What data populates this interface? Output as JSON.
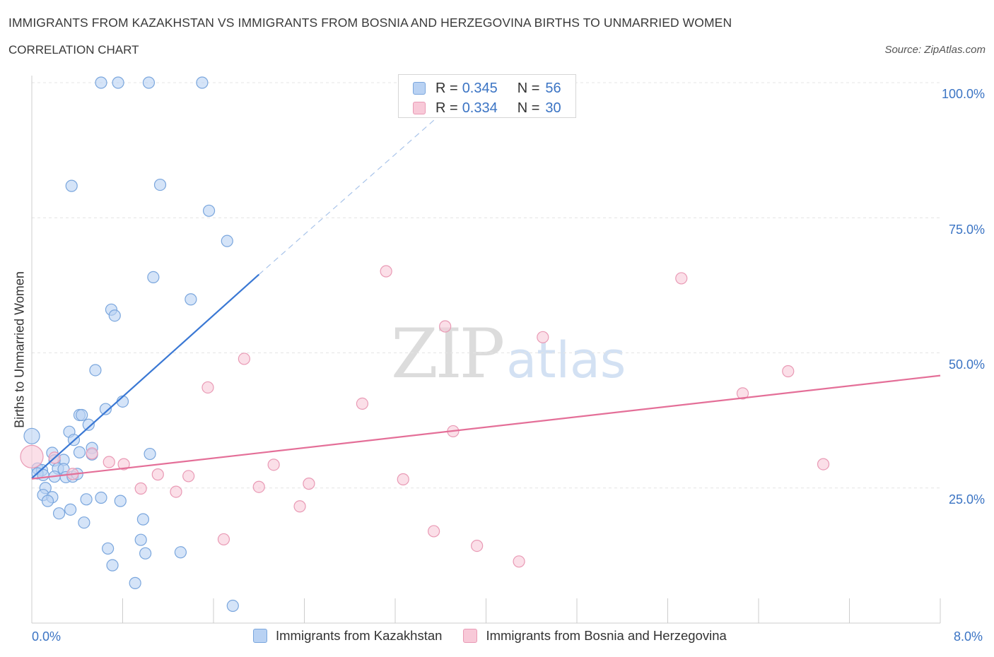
{
  "header": {
    "title": "IMMIGRANTS FROM KAZAKHSTAN VS IMMIGRANTS FROM BOSNIA AND HERZEGOVINA BIRTHS TO UNMARRIED WOMEN",
    "subtitle": "CORRELATION CHART",
    "source": "Source: ZipAtlas.com"
  },
  "watermark": {
    "zip": "ZIP",
    "atlas": "atlas"
  },
  "legend_top": {
    "rows": [
      {
        "r_label": "R =",
        "r_value": "0.345",
        "n_label": "N =",
        "n_value": "56"
      },
      {
        "r_label": "R =",
        "r_value": "0.334",
        "n_label": "N =",
        "n_value": "30"
      }
    ]
  },
  "legend_bottom": {
    "items": [
      {
        "label": "Immigrants from Kazakhstan"
      },
      {
        "label": "Immigrants from Bosnia and Herzegovina"
      }
    ]
  },
  "axes": {
    "ylabel": "Births to Unmarried Women",
    "x_ticks": [
      "0.0%",
      "8.0%"
    ],
    "y_ticks": [
      "100.0%",
      "75.0%",
      "50.0%",
      "25.0%"
    ]
  },
  "colors": {
    "series1_fill": "#b9d2f3",
    "series1_stroke": "#7aa6dd",
    "series1_line": "#3a78d4",
    "series2_fill": "#f8c9d8",
    "series2_stroke": "#e99ab5",
    "series2_line": "#e46f98",
    "grid": "#e4e4e4",
    "axis": "#cccccc",
    "tick_text": "#3b74c4"
  },
  "chart_data": {
    "type": "scatter",
    "title": "IMMIGRANTS FROM KAZAKHSTAN VS IMMIGRANTS FROM BOSNIA AND HERZEGOVINA BIRTHS TO UNMARRIED WOMEN",
    "xlabel": "",
    "ylabel": "Births to Unmarried Women",
    "xlim": [
      0,
      8.0
    ],
    "ylim": [
      0,
      100
    ],
    "grid": true,
    "legend_position": "top-center",
    "series": [
      {
        "name": "Immigrants from Kazakhstan",
        "R": 0.345,
        "N": 56,
        "points": [
          [
            0.61,
            100.0
          ],
          [
            0.76,
            100.0
          ],
          [
            1.03,
            100.0
          ],
          [
            1.5,
            100.0
          ],
          [
            0.35,
            80.9
          ],
          [
            1.13,
            81.1
          ],
          [
            1.56,
            76.3
          ],
          [
            1.72,
            70.7
          ],
          [
            1.07,
            64.0
          ],
          [
            1.4,
            59.9
          ],
          [
            0.7,
            58.0
          ],
          [
            0.73,
            56.9
          ],
          [
            0.56,
            46.8
          ],
          [
            0.8,
            41.0
          ],
          [
            0.65,
            39.6
          ],
          [
            0.42,
            38.5
          ],
          [
            0.44,
            38.5
          ],
          [
            0.5,
            36.7
          ],
          [
            0.33,
            35.4
          ],
          [
            0.0,
            34.6
          ],
          [
            0.37,
            33.9
          ],
          [
            0.53,
            32.4
          ],
          [
            0.42,
            31.6
          ],
          [
            0.18,
            31.5
          ],
          [
            0.53,
            31.2
          ],
          [
            1.04,
            31.3
          ],
          [
            0.28,
            30.2
          ],
          [
            0.2,
            30.1
          ],
          [
            0.05,
            28.6
          ],
          [
            0.09,
            28.3
          ],
          [
            0.23,
            28.6
          ],
          [
            0.28,
            28.5
          ],
          [
            0.05,
            27.7
          ],
          [
            0.1,
            27.4
          ],
          [
            0.2,
            27.1
          ],
          [
            0.3,
            27.0
          ],
          [
            0.36,
            27.1
          ],
          [
            0.4,
            27.6
          ],
          [
            0.12,
            25.0
          ],
          [
            0.1,
            23.7
          ],
          [
            0.18,
            23.3
          ],
          [
            0.14,
            22.6
          ],
          [
            0.48,
            22.9
          ],
          [
            0.61,
            23.2
          ],
          [
            0.78,
            22.6
          ],
          [
            0.34,
            21.0
          ],
          [
            0.24,
            20.3
          ],
          [
            0.46,
            18.6
          ],
          [
            0.98,
            19.2
          ],
          [
            0.96,
            15.4
          ],
          [
            0.67,
            13.8
          ],
          [
            1.0,
            12.9
          ],
          [
            1.31,
            13.1
          ],
          [
            0.71,
            10.7
          ],
          [
            0.91,
            7.4
          ],
          [
            1.77,
            3.2
          ]
        ],
        "trend": {
          "x": [
            0.0,
            2.0
          ],
          "y": [
            26.8,
            64.5
          ],
          "extension_to": [
            3.7,
            96.0
          ]
        }
      },
      {
        "name": "Immigrants from Bosnia and Herzegovina",
        "R": 0.334,
        "N": 30,
        "points": [
          [
            3.12,
            65.1
          ],
          [
            5.72,
            63.8
          ],
          [
            3.64,
            54.9
          ],
          [
            4.5,
            52.9
          ],
          [
            1.87,
            48.9
          ],
          [
            6.66,
            46.6
          ],
          [
            1.55,
            43.6
          ],
          [
            6.26,
            42.5
          ],
          [
            2.91,
            40.6
          ],
          [
            3.71,
            35.5
          ],
          [
            0.0,
            30.8
          ],
          [
            0.2,
            30.6
          ],
          [
            0.53,
            31.4
          ],
          [
            0.68,
            29.8
          ],
          [
            0.81,
            29.4
          ],
          [
            2.13,
            29.3
          ],
          [
            6.97,
            29.4
          ],
          [
            0.36,
            27.6
          ],
          [
            1.11,
            27.5
          ],
          [
            1.38,
            27.2
          ],
          [
            3.27,
            26.6
          ],
          [
            2.44,
            25.8
          ],
          [
            2.0,
            25.2
          ],
          [
            0.96,
            24.9
          ],
          [
            1.27,
            24.3
          ],
          [
            2.36,
            21.6
          ],
          [
            3.54,
            17.0
          ],
          [
            1.69,
            15.5
          ],
          [
            3.92,
            14.3
          ],
          [
            4.29,
            11.4
          ]
        ],
        "trend": {
          "x": [
            0.0,
            8.0
          ],
          "y": [
            26.7,
            45.8
          ]
        }
      }
    ]
  }
}
